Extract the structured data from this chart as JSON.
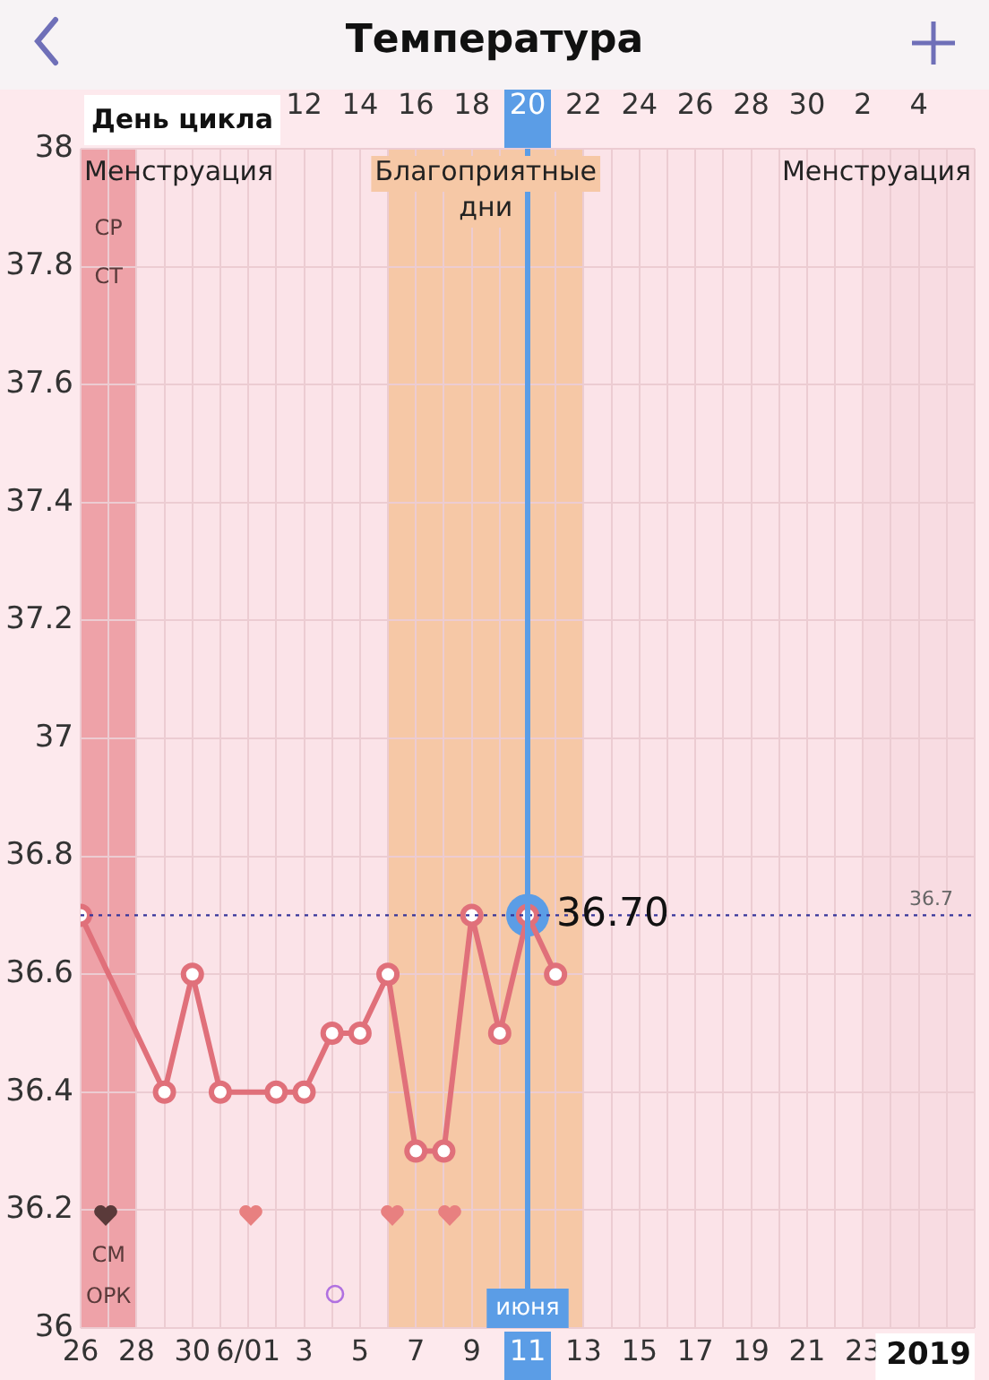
{
  "chart_data": {
    "type": "line",
    "title": "Температура",
    "x2label": "День цикла",
    "series": [
      {
        "color": "#e0707a",
        "x": [
          "--05-26",
          "--05-29",
          "--05-30",
          "--05-31",
          "--06-02",
          "--06-03",
          "--06-04",
          "--06-05",
          "--06-06",
          "--06-07",
          "--06-08",
          "--06-09",
          "--06-10",
          "--06-11",
          "--06-12"
        ],
        "values": [
          36.7,
          36.4,
          36.6,
          36.4,
          36.4,
          36.4,
          36.5,
          36.5,
          36.6,
          36.3,
          36.3,
          36.7,
          36.5,
          36.7,
          36.6
        ]
      }
    ],
    "xlim": [
      "--05-26",
      "--06-27"
    ],
    "xticks": [
      {
        "value": "--05-26",
        "label": "26"
      },
      {
        "value": "--05-27",
        "label": null
      },
      {
        "value": "--05-28",
        "label": "28"
      },
      {
        "value": "--05-29",
        "label": null
      },
      {
        "value": "--05-30",
        "label": "30"
      },
      {
        "value": "--05-31",
        "label": null
      },
      {
        "value": "--06-01",
        "label": "6/01"
      },
      {
        "value": "--06-02",
        "label": null
      },
      {
        "value": "--06-03",
        "label": "3"
      },
      {
        "value": "--06-04",
        "label": null
      },
      {
        "value": "--06-05",
        "label": "5"
      },
      {
        "value": "--06-06",
        "label": null
      },
      {
        "value": "--06-07",
        "label": "7"
      },
      {
        "value": "--06-08",
        "label": null
      },
      {
        "value": "--06-09",
        "label": "9"
      },
      {
        "value": "--06-10",
        "label": null
      },
      {
        "value": "--06-11",
        "label": "11"
      },
      {
        "value": "--06-12",
        "label": null
      },
      {
        "value": "--06-13",
        "label": "13"
      },
      {
        "value": "--06-14",
        "label": null
      },
      {
        "value": "--06-15",
        "label": "15"
      },
      {
        "value": "--06-16",
        "label": null
      },
      {
        "value": "--06-17",
        "label": "17"
      },
      {
        "value": "--06-18",
        "label": null
      },
      {
        "value": "--06-19",
        "label": "19"
      },
      {
        "value": "--06-20",
        "label": null
      },
      {
        "value": "--06-21",
        "label": "21"
      },
      {
        "value": "--06-22",
        "label": null
      },
      {
        "value": "--06-23",
        "label": "23"
      },
      {
        "value": "--06-24",
        "label": null
      },
      {
        "value": "--06-25",
        "label": null
      },
      {
        "value": "--06-26",
        "label": null
      },
      {
        "value": "--06-27",
        "label": null
      }
    ],
    "x2lim": [
      "--05-26",
      "--06-27"
    ],
    "x2ticks": [
      {
        "value": "--06-03",
        "label": "12"
      },
      {
        "value": "--06-05",
        "label": "14"
      },
      {
        "value": "--06-07",
        "label": "16"
      },
      {
        "value": "--06-09",
        "label": "18"
      },
      {
        "value": "--06-11",
        "label": "20"
      },
      {
        "value": "--06-13",
        "label": "22"
      },
      {
        "value": "--06-15",
        "label": "24"
      },
      {
        "value": "--06-17",
        "label": "26"
      },
      {
        "value": "--06-19",
        "label": "28"
      },
      {
        "value": "--06-21",
        "label": "30"
      },
      {
        "value": "--06-23",
        "label": "2"
      },
      {
        "value": "--06-25",
        "label": "4"
      }
    ],
    "ylim": [
      36,
      38
    ],
    "yticks": [
      36,
      36.2,
      36.4,
      36.6,
      36.8,
      37,
      37.2,
      37.4,
      37.6,
      37.8,
      38
    ],
    "grid": true,
    "legend": false,
    "marker": "circle",
    "line_style": "solid",
    "bands": [
      {
        "axis": "x",
        "from": "--05-26",
        "to": "--05-28",
        "label": "Менструация",
        "color": "#eea2a8"
      },
      {
        "axis": "x",
        "from": "--06-06",
        "to": "--06-13",
        "label": "Благоприятные дни",
        "color": "#f6c8a6"
      },
      {
        "axis": "x",
        "from": "--06-23",
        "to": "--06-27",
        "label": "Менструация",
        "color": "#f8dce2"
      }
    ],
    "ref_lines": [
      {
        "axis": "y",
        "value": 36.7,
        "label": "36.7",
        "color": "#34349a",
        "line_style": "dotted"
      },
      {
        "axis": "x",
        "value": "--06-11",
        "label": "июня",
        "color": "#5b9de6",
        "line_style": "solid"
      }
    ],
    "annotations": [
      {
        "text": "36.70",
        "x": "--06-11",
        "y": 36.7
      },
      "СР",
      "СТ",
      "СМ",
      "ОРК",
      "2019"
    ]
  }
}
